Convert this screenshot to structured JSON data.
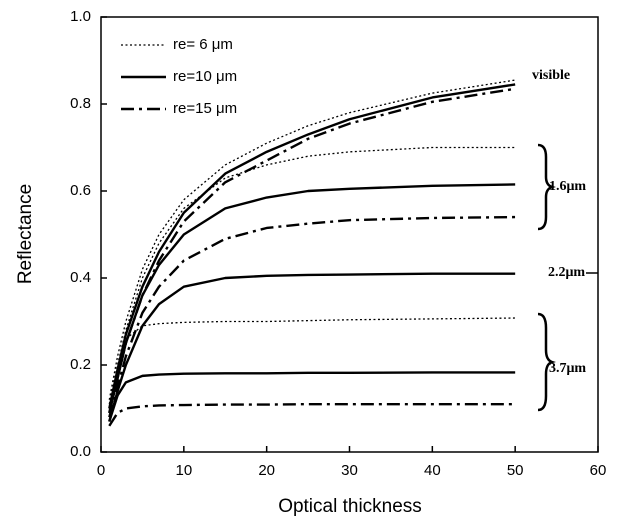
{
  "chart_data": {
    "type": "line",
    "x_label": "Optical thickness",
    "y_label": "Reflectance",
    "xlim": [
      0,
      60
    ],
    "xticks": [
      0,
      10,
      20,
      30,
      40,
      50,
      60
    ],
    "ylim": [
      0,
      1
    ],
    "yticks": [
      {
        "value": 0,
        "label": "0.0"
      },
      0.2,
      0.4,
      0.6,
      0.8,
      {
        "value": 1,
        "label": "1.0"
      }
    ],
    "legend": "upper-left",
    "color": "#000000",
    "curve_labels": [
      "visible",
      "1.6μm",
      "2.2μm",
      "3.7μm"
    ],
    "x": [
      1,
      2,
      3,
      5,
      7,
      10,
      15,
      20,
      25,
      30,
      40,
      50
    ],
    "series": [
      {
        "name": "re= 6 μm",
        "dash": "dotted",
        "values": [
          [
            0.12,
            0.22,
            0.3,
            0.42,
            0.5,
            0.58,
            0.66,
            0.71,
            0.75,
            0.78,
            0.825,
            0.855
          ],
          [
            0.11,
            0.2,
            0.28,
            0.4,
            0.48,
            0.56,
            0.63,
            0.66,
            0.68,
            0.69,
            0.7,
            0.7
          ],
          null,
          [
            0.1,
            0.2,
            0.26,
            0.29,
            0.295,
            0.298,
            0.3,
            0.3,
            0.302,
            0.304,
            0.306,
            0.308
          ]
        ]
      },
      {
        "name": "re=10 μm",
        "dash": "solid",
        "values": [
          [
            0.1,
            0.19,
            0.27,
            0.38,
            0.46,
            0.55,
            0.64,
            0.69,
            0.73,
            0.765,
            0.815,
            0.845
          ],
          [
            0.09,
            0.17,
            0.25,
            0.36,
            0.43,
            0.5,
            0.56,
            0.585,
            0.6,
            0.605,
            0.612,
            0.615
          ],
          [
            0.07,
            0.14,
            0.2,
            0.29,
            0.34,
            0.38,
            0.4,
            0.405,
            0.407,
            0.408,
            0.41,
            0.41
          ],
          [
            0.07,
            0.13,
            0.16,
            0.175,
            0.178,
            0.18,
            0.181,
            0.181,
            0.182,
            0.182,
            0.183,
            0.183
          ]
        ]
      },
      {
        "name": "re=15 μm",
        "dash": "dashdot",
        "values": [
          [
            0.09,
            0.17,
            0.25,
            0.36,
            0.44,
            0.53,
            0.62,
            0.67,
            0.72,
            0.755,
            0.805,
            0.835
          ],
          [
            0.08,
            0.15,
            0.22,
            0.32,
            0.38,
            0.44,
            0.49,
            0.515,
            0.525,
            0.533,
            0.538,
            0.54
          ],
          null,
          [
            0.06,
            0.09,
            0.1,
            0.105,
            0.107,
            0.108,
            0.109,
            0.109,
            0.11,
            0.11,
            0.11,
            0.11
          ]
        ]
      }
    ]
  }
}
